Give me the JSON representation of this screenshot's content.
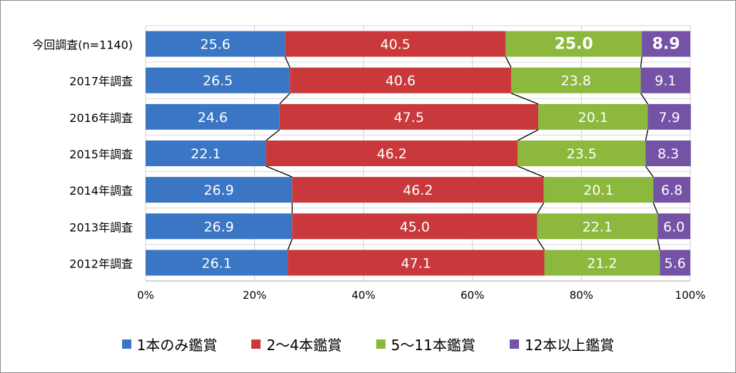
{
  "chart_data": {
    "type": "bar",
    "orientation": "horizontal",
    "stacked": "percent",
    "categories": [
      "今回調査(n=1140)",
      "2017年調査",
      "2016年調査",
      "2015年調査",
      "2014年調査",
      "2013年調査",
      "2012年調査"
    ],
    "series": [
      {
        "name": "1本のみ鑑賞",
        "color": "#3a76c4",
        "values": [
          25.6,
          26.5,
          24.6,
          22.1,
          26.9,
          26.9,
          26.1
        ]
      },
      {
        "name": "2～4本鑑賞",
        "color": "#c9393b",
        "values": [
          40.5,
          40.6,
          47.5,
          46.2,
          46.2,
          45.0,
          47.1
        ]
      },
      {
        "name": "5～11本鑑賞",
        "color": "#8bb83d",
        "values": [
          25.0,
          23.8,
          20.1,
          23.5,
          20.1,
          22.1,
          21.2
        ]
      },
      {
        "name": "12本以上鑑賞",
        "color": "#7452a6",
        "values": [
          8.9,
          9.1,
          7.9,
          8.3,
          6.8,
          6.0,
          5.6
        ]
      }
    ],
    "value_labels": [
      [
        "25.6",
        "40.5",
        "25.0",
        "8.9"
      ],
      [
        "26.5",
        "40.6",
        "23.8",
        "9.1"
      ],
      [
        "24.6",
        "47.5",
        "20.1",
        "7.9"
      ],
      [
        "22.1",
        "46.2",
        "23.5",
        "8.3"
      ],
      [
        "26.9",
        "46.2",
        "20.1",
        "6.8"
      ],
      [
        "26.9",
        "45.0",
        "22.1",
        "6.0"
      ],
      [
        "26.1",
        "47.1",
        "21.2",
        "5.6"
      ]
    ],
    "highlight_row": 0,
    "xlim": [
      0,
      100
    ],
    "xticks": [
      "0%",
      "20%",
      "40%",
      "60%",
      "80%",
      "100%"
    ],
    "series_lines": true,
    "grid": true,
    "legend_position": "bottom"
  }
}
